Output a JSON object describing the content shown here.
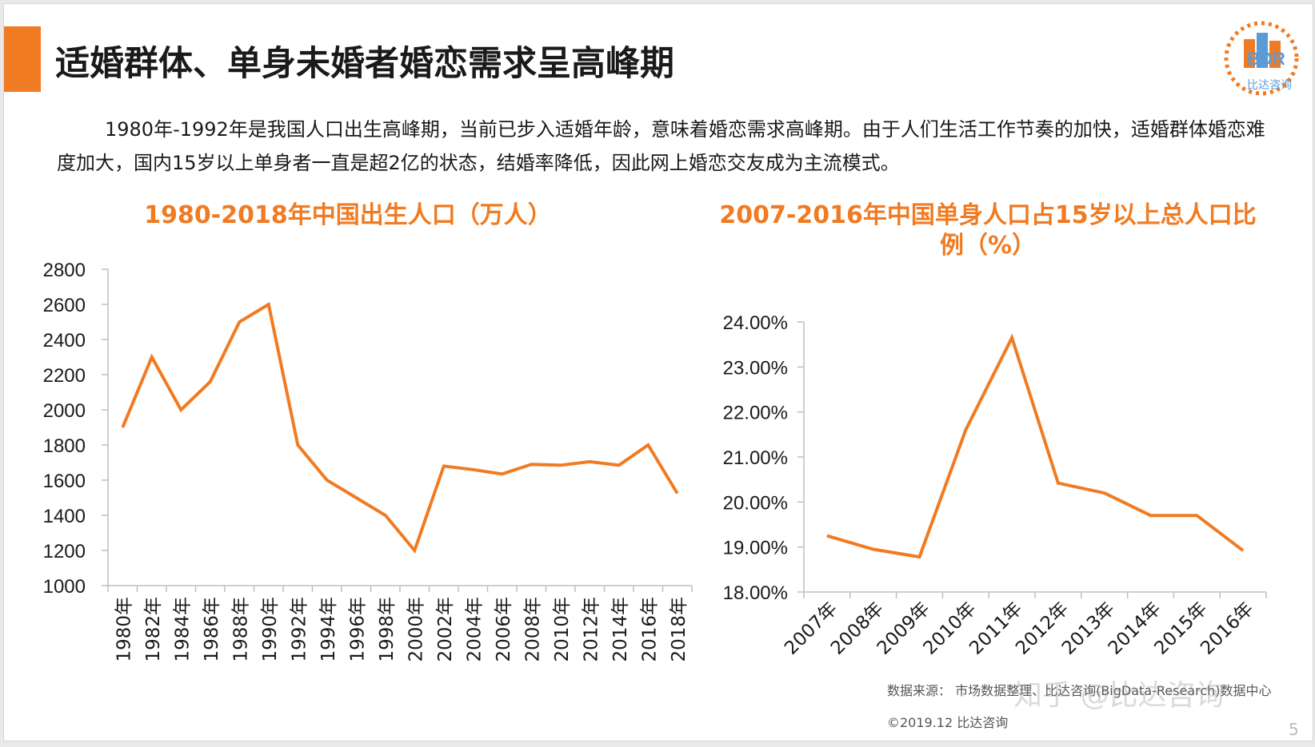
{
  "slide": {
    "title": "适婚群体、单身未婚者婚恋需求呈高峰期",
    "intro": "1980年-1992年是我国人口出生高峰期，当前已步入适婚年龄，意味着婚恋需求高峰期。由于人们生活工作节奏的加快，适婚群体婚恋难度加大，国内15岁以上单身者一直是超2亿的状态，结婚率降低，因此网上婚恋交友成为主流模式。",
    "logo_text": "BDR",
    "logo_subtext": "比达咨询",
    "source": "数据来源： 市场数据整理、比达咨询(BigData-Research)数据中心",
    "copyright": "©2019.12 比达咨询",
    "watermark": "知乎 @比达咨询",
    "page_number": "5"
  },
  "colors": {
    "accent": "#f07b22",
    "axis": "#bfbfbf",
    "text": "#1a1a1a"
  },
  "chart_data": [
    {
      "type": "line",
      "title": "1980-2018年中国出生人口（万人）",
      "categories": [
        "1980年",
        "1982年",
        "1984年",
        "1986年",
        "1988年",
        "1990年",
        "1992年",
        "1994年",
        "1996年",
        "1998年",
        "2000年",
        "2002年",
        "2004年",
        "2006年",
        "2008年",
        "2010年",
        "2012年",
        "2014年",
        "2016年",
        "2018年"
      ],
      "values": [
        1900,
        2300,
        2000,
        2160,
        2500,
        2600,
        1800,
        1600,
        1500,
        1400,
        1200,
        1680,
        1660,
        1635,
        1690,
        1685,
        1705,
        1685,
        1800,
        1525
      ],
      "ylim": [
        1000,
        2800
      ],
      "yticks": [
        1000,
        1200,
        1400,
        1600,
        1800,
        2000,
        2200,
        2400,
        2600,
        2800
      ],
      "xlabel": "",
      "ylabel": "",
      "legend": "none",
      "grid": false
    },
    {
      "type": "line",
      "title": "2007-2016年中国单身人口占15岁以上总人口比例（%）",
      "categories": [
        "2007年",
        "2008年",
        "2009年",
        "2010年",
        "2011年",
        "2012年",
        "2013年",
        "2014年",
        "2015年",
        "2016年"
      ],
      "values": [
        19.25,
        18.95,
        18.78,
        21.6,
        23.65,
        20.42,
        20.2,
        19.7,
        19.7,
        18.92
      ],
      "ylim": [
        18,
        24
      ],
      "yticks": [
        "18.00%",
        "19.00%",
        "20.00%",
        "21.00%",
        "22.00%",
        "23.00%",
        "24.00%"
      ],
      "xlabel": "",
      "ylabel": "",
      "legend": "none",
      "grid": false
    }
  ]
}
